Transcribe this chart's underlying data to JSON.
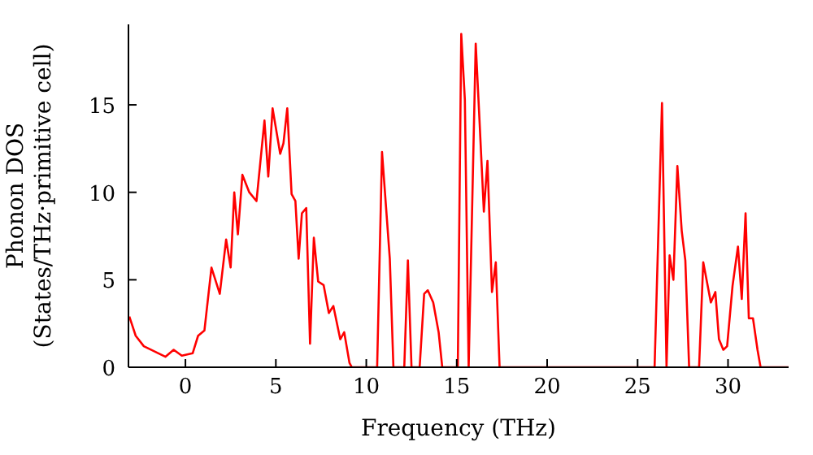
{
  "chart_data": {
    "type": "line",
    "xlabel": "Frequency (THz)",
    "ylabel": "Phonon DOS\n(States/THz·primitive cell)",
    "xlim": [
      -3.15,
      33.35
    ],
    "ylim": [
      0,
      19.6
    ],
    "xticks": [
      0,
      5,
      10,
      15,
      20,
      25,
      30
    ],
    "yticks": [
      0,
      5,
      10,
      15
    ],
    "grid": false,
    "legend": false,
    "marker": "none",
    "line_style": "solid",
    "series": [
      {
        "color": "#ff0000",
        "x": [
          -3.1,
          -2.75,
          -2.3,
          -1.1,
          -0.65,
          -0.2,
          0.4,
          0.7,
          1.05,
          1.44,
          1.9,
          2.25,
          2.5,
          2.7,
          2.9,
          3.15,
          3.53,
          3.93,
          4.37,
          4.58,
          4.82,
          5.24,
          5.42,
          5.63,
          5.87,
          6.08,
          6.26,
          6.44,
          6.68,
          6.89,
          7.1,
          7.34,
          7.64,
          7.93,
          8.18,
          8.56,
          8.78,
          9.07,
          9.2,
          10.6,
          10.87,
          11.3,
          11.5,
          12.1,
          12.3,
          12.5,
          12.95,
          13.2,
          13.4,
          13.7,
          14.0,
          14.2,
          15.06,
          15.25,
          15.45,
          15.66,
          16.05,
          16.26,
          16.5,
          16.7,
          16.95,
          17.16,
          17.37,
          25.94,
          26.35,
          26.6,
          26.77,
          26.98,
          27.2,
          27.44,
          27.64,
          27.85,
          28.4,
          28.63,
          29.05,
          29.3,
          29.5,
          29.74,
          29.95,
          30.25,
          30.55,
          30.76,
          30.97,
          31.15,
          31.38,
          31.63,
          31.8,
          33.35
        ],
        "values": [
          2.9,
          1.8,
          1.2,
          0.6,
          1.0,
          0.66,
          0.8,
          1.8,
          2.1,
          5.7,
          4.2,
          7.3,
          5.7,
          10.0,
          7.6,
          11.0,
          10.0,
          9.5,
          14.1,
          10.9,
          14.8,
          12.2,
          12.8,
          14.8,
          9.9,
          9.5,
          6.2,
          8.8,
          9.1,
          1.35,
          7.4,
          4.9,
          4.7,
          3.1,
          3.5,
          1.6,
          2.0,
          0.25,
          0,
          0,
          12.3,
          6.2,
          0,
          0,
          6.1,
          0,
          0,
          4.2,
          4.4,
          3.7,
          2.0,
          0,
          0,
          19.05,
          15.3,
          0,
          18.5,
          14.1,
          8.9,
          11.8,
          4.3,
          6.0,
          0,
          0,
          15.1,
          0,
          6.4,
          5.0,
          11.5,
          7.8,
          6.1,
          0,
          0,
          6.0,
          3.7,
          4.3,
          1.6,
          1.0,
          1.2,
          4.65,
          6.9,
          3.9,
          8.8,
          2.8,
          2.8,
          1.0,
          0,
          0
        ]
      }
    ]
  }
}
